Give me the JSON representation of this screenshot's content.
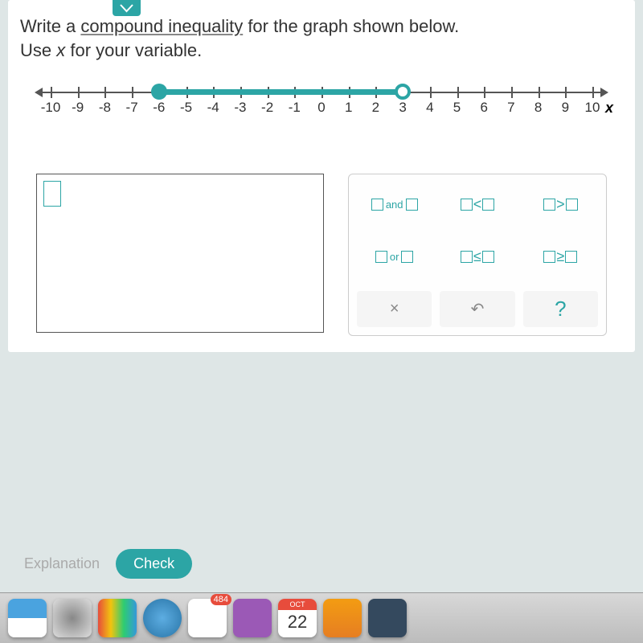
{
  "question": {
    "line1_pre": "Write a ",
    "line1_link": "compound inequality",
    "line1_post": " for the graph shown below.",
    "line2_pre": "Use ",
    "line2_var": "x",
    "line2_post": " for your variable."
  },
  "numberline": {
    "min": -10,
    "max": 10,
    "ticks": [
      -10,
      -9,
      -8,
      -7,
      -6,
      -5,
      -4,
      -3,
      -2,
      -1,
      0,
      1,
      2,
      3,
      4,
      5,
      6,
      7,
      8,
      9,
      10
    ],
    "interval_start": -6,
    "interval_end": 3,
    "start_closed": true,
    "end_closed": false,
    "x_label": "x",
    "color": "#2ca5a5",
    "axis_color": "#555"
  },
  "keypad": {
    "rows": [
      [
        {
          "type": "and"
        },
        {
          "type": "lt"
        },
        {
          "type": "gt"
        }
      ],
      [
        {
          "type": "or"
        },
        {
          "type": "le"
        },
        {
          "type": "ge"
        }
      ],
      [
        {
          "type": "clear",
          "label": "×"
        },
        {
          "type": "undo",
          "label": "↶"
        },
        {
          "type": "help",
          "label": "?"
        }
      ]
    ],
    "and_text": "and",
    "or_text": "or"
  },
  "footer": {
    "explanation": "Explanation",
    "check": "Check"
  },
  "dock": {
    "badge": "484",
    "cal_month": "OCT",
    "cal_day": "22"
  },
  "style": {
    "accent": "#2ca5a5",
    "background": "#dee6e6",
    "font_size_question": 22,
    "tick_font_size": 17
  }
}
